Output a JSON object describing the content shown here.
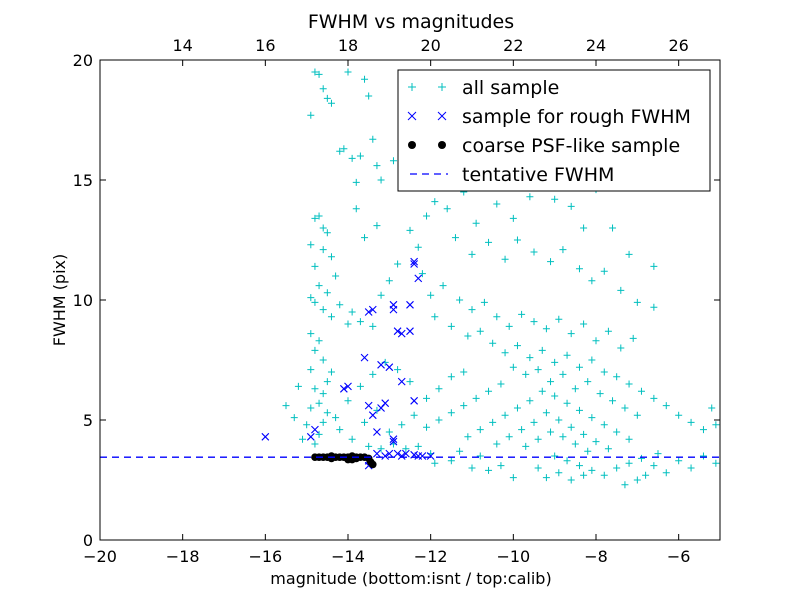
{
  "chart_data": {
    "type": "scatter",
    "title": "FWHM vs magnitudes",
    "xlabel": "magnitude (bottom:isnt / top:calib)",
    "ylabel": "FWHM (pix)",
    "xlim": [
      -20,
      -5
    ],
    "ylim": [
      0,
      20
    ],
    "x_ticks": [
      -20,
      -18,
      -16,
      -14,
      -12,
      -10,
      -8,
      -6
    ],
    "y_ticks": [
      0,
      5,
      10,
      15,
      20
    ],
    "x_tick_labels": [
      "−20",
      "−18",
      "−16",
      "−14",
      "−12",
      "−10",
      "−8",
      "−6"
    ],
    "y_tick_labels": [
      "0",
      "5",
      "10",
      "15",
      "20"
    ],
    "top_axis": {
      "offset": 32.0,
      "ticks": [
        14,
        16,
        18,
        20,
        22,
        24,
        26
      ],
      "tick_labels": [
        "14",
        "16",
        "18",
        "20",
        "22",
        "24",
        "26"
      ]
    },
    "grid": false,
    "legend_position": "top-right",
    "series": [
      {
        "name": "all sample",
        "marker": "+",
        "color": "#00bfbf",
        "points": [
          [
            -14.8,
            19.5
          ],
          [
            -14.7,
            19.4
          ],
          [
            -14.6,
            18.8
          ],
          [
            -14.5,
            18.4
          ],
          [
            -14.4,
            18.2
          ],
          [
            -14.9,
            17.7
          ],
          [
            -14.0,
            19.5
          ],
          [
            -13.6,
            19.2
          ],
          [
            -13.5,
            18.5
          ],
          [
            -14.1,
            16.3
          ],
          [
            -14.2,
            16.2
          ],
          [
            -13.9,
            15.9
          ],
          [
            -13.7,
            16.0
          ],
          [
            -13.4,
            16.7
          ],
          [
            -13.3,
            15.6
          ],
          [
            -12.9,
            15.8
          ],
          [
            -13.2,
            15.0
          ],
          [
            -13.8,
            14.9
          ],
          [
            -12.6,
            15.1
          ],
          [
            -12.3,
            14.7
          ],
          [
            -14.8,
            13.4
          ],
          [
            -14.7,
            13.5
          ],
          [
            -14.6,
            13.0
          ],
          [
            -14.5,
            12.8
          ],
          [
            -14.9,
            12.3
          ],
          [
            -14.6,
            12.1
          ],
          [
            -14.4,
            11.8
          ],
          [
            -14.8,
            11.4
          ],
          [
            -14.3,
            11.0
          ],
          [
            -14.7,
            10.6
          ],
          [
            -14.5,
            10.3
          ],
          [
            -14.9,
            10.1
          ],
          [
            -14.8,
            9.9
          ],
          [
            -14.6,
            9.6
          ],
          [
            -14.4,
            9.3
          ],
          [
            -14.2,
            9.8
          ],
          [
            -13.9,
            9.5
          ],
          [
            -14.0,
            9.0
          ],
          [
            -13.7,
            9.1
          ],
          [
            -13.4,
            8.9
          ],
          [
            -13.2,
            10.2
          ],
          [
            -13.0,
            10.8
          ],
          [
            -12.8,
            11.5
          ],
          [
            -12.5,
            12.9
          ],
          [
            -12.3,
            12.2
          ],
          [
            -13.6,
            12.6
          ],
          [
            -13.3,
            13.1
          ],
          [
            -13.8,
            13.8
          ],
          [
            -12.1,
            13.5
          ],
          [
            -11.9,
            14.1
          ],
          [
            -11.6,
            13.8
          ],
          [
            -11.2,
            14.5
          ],
          [
            -10.9,
            13.2
          ],
          [
            -10.4,
            14.0
          ],
          [
            -10.0,
            13.4
          ],
          [
            -9.6,
            14.3
          ],
          [
            -9.2,
            15.0
          ],
          [
            -9.0,
            14.2
          ],
          [
            -8.6,
            13.9
          ],
          [
            -8.3,
            13.0
          ],
          [
            -8.0,
            14.6
          ],
          [
            -7.6,
            13.0
          ],
          [
            -7.2,
            11.9
          ],
          [
            -6.6,
            11.4
          ],
          [
            -9.8,
            16.5
          ],
          [
            -10.8,
            15.4
          ],
          [
            -11.4,
            12.6
          ],
          [
            -11.0,
            11.9
          ],
          [
            -10.6,
            12.4
          ],
          [
            -10.2,
            11.7
          ],
          [
            -9.9,
            12.5
          ],
          [
            -9.5,
            12.0
          ],
          [
            -9.1,
            11.6
          ],
          [
            -8.8,
            12.1
          ],
          [
            -8.4,
            11.3
          ],
          [
            -8.1,
            10.8
          ],
          [
            -7.8,
            11.2
          ],
          [
            -7.4,
            10.4
          ],
          [
            -7.0,
            9.9
          ],
          [
            -6.6,
            9.7
          ],
          [
            -12.2,
            11.1
          ],
          [
            -12.0,
            10.2
          ],
          [
            -11.7,
            10.6
          ],
          [
            -11.3,
            10.0
          ],
          [
            -11.0,
            9.6
          ],
          [
            -10.7,
            9.9
          ],
          [
            -10.4,
            9.3
          ],
          [
            -10.1,
            8.9
          ],
          [
            -9.8,
            9.4
          ],
          [
            -9.5,
            9.1
          ],
          [
            -9.2,
            8.8
          ],
          [
            -8.9,
            9.2
          ],
          [
            -8.6,
            8.6
          ],
          [
            -8.3,
            9.0
          ],
          [
            -8.0,
            8.3
          ],
          [
            -7.7,
            8.7
          ],
          [
            -7.4,
            8.0
          ],
          [
            -7.1,
            8.4
          ],
          [
            -11.9,
            9.3
          ],
          [
            -11.5,
            8.9
          ],
          [
            -11.1,
            8.5
          ],
          [
            -10.8,
            8.7
          ],
          [
            -10.5,
            8.2
          ],
          [
            -10.2,
            7.8
          ],
          [
            -9.9,
            8.1
          ],
          [
            -9.6,
            7.6
          ],
          [
            -9.3,
            7.9
          ],
          [
            -9.0,
            7.4
          ],
          [
            -8.7,
            7.7
          ],
          [
            -8.4,
            7.2
          ],
          [
            -8.1,
            7.5
          ],
          [
            -7.8,
            7.0
          ],
          [
            -7.5,
            6.8
          ],
          [
            -7.2,
            6.5
          ],
          [
            -6.9,
            6.2
          ],
          [
            -6.6,
            5.9
          ],
          [
            -6.3,
            5.6
          ],
          [
            -6.0,
            5.2
          ],
          [
            -5.7,
            4.9
          ],
          [
            -5.4,
            4.6
          ],
          [
            -5.2,
            5.5
          ],
          [
            -5.1,
            4.8
          ],
          [
            -10.0,
            7.2
          ],
          [
            -9.7,
            6.9
          ],
          [
            -9.4,
            7.1
          ],
          [
            -9.1,
            6.6
          ],
          [
            -8.8,
            6.9
          ],
          [
            -8.5,
            6.3
          ],
          [
            -8.2,
            6.6
          ],
          [
            -7.9,
            6.1
          ],
          [
            -7.6,
            5.8
          ],
          [
            -7.3,
            5.5
          ],
          [
            -7.0,
            5.2
          ],
          [
            -10.3,
            6.5
          ],
          [
            -10.6,
            6.2
          ],
          [
            -10.9,
            5.9
          ],
          [
            -11.2,
            5.6
          ],
          [
            -11.5,
            5.3
          ],
          [
            -11.8,
            5.0
          ],
          [
            -12.1,
            4.7
          ],
          [
            -9.3,
            6.2
          ],
          [
            -9.0,
            6.0
          ],
          [
            -8.7,
            5.7
          ],
          [
            -8.4,
            5.4
          ],
          [
            -8.1,
            5.1
          ],
          [
            -7.8,
            4.8
          ],
          [
            -7.5,
            4.5
          ],
          [
            -7.2,
            4.2
          ],
          [
            -9.6,
            5.8
          ],
          [
            -9.9,
            5.5
          ],
          [
            -10.2,
            5.2
          ],
          [
            -10.5,
            4.9
          ],
          [
            -10.8,
            4.6
          ],
          [
            -11.1,
            4.3
          ],
          [
            -9.2,
            5.3
          ],
          [
            -8.9,
            5.0
          ],
          [
            -8.6,
            4.7
          ],
          [
            -8.3,
            4.4
          ],
          [
            -8.0,
            4.1
          ],
          [
            -7.7,
            3.8
          ],
          [
            -9.5,
            4.9
          ],
          [
            -9.8,
            4.6
          ],
          [
            -10.1,
            4.3
          ],
          [
            -10.4,
            4.0
          ],
          [
            -8.8,
            4.3
          ],
          [
            -8.5,
            4.0
          ],
          [
            -8.2,
            3.7
          ],
          [
            -9.1,
            4.5
          ],
          [
            -9.4,
            4.2
          ],
          [
            -9.7,
            3.9
          ],
          [
            -9.0,
            3.5
          ],
          [
            -8.7,
            3.3
          ],
          [
            -8.4,
            3.1
          ],
          [
            -8.1,
            2.9
          ],
          [
            -7.8,
            2.7
          ],
          [
            -7.5,
            3.0
          ],
          [
            -7.2,
            3.2
          ],
          [
            -6.9,
            3.4
          ],
          [
            -6.6,
            3.1
          ],
          [
            -6.3,
            2.8
          ],
          [
            -6.0,
            3.3
          ],
          [
            -5.7,
            3.0
          ],
          [
            -5.4,
            3.5
          ],
          [
            -5.1,
            3.2
          ],
          [
            -7.0,
            2.5
          ],
          [
            -7.3,
            2.3
          ],
          [
            -6.8,
            2.7
          ],
          [
            -6.5,
            3.6
          ],
          [
            -10.6,
            2.9
          ],
          [
            -10.3,
            3.1
          ],
          [
            -11.0,
            3.0
          ],
          [
            -11.5,
            3.3
          ],
          [
            -11.9,
            3.2
          ],
          [
            -9.2,
            2.6
          ],
          [
            -8.9,
            2.8
          ],
          [
            -8.6,
            2.5
          ],
          [
            -8.3,
            2.7
          ],
          [
            -14.8,
            4.0
          ],
          [
            -14.7,
            4.4
          ],
          [
            -14.6,
            4.9
          ],
          [
            -14.5,
            5.3
          ],
          [
            -14.7,
            5.7
          ],
          [
            -14.6,
            6.1
          ],
          [
            -14.5,
            6.6
          ],
          [
            -14.4,
            7.0
          ],
          [
            -14.6,
            7.5
          ],
          [
            -14.8,
            7.9
          ],
          [
            -14.7,
            8.3
          ],
          [
            -14.9,
            8.6
          ],
          [
            -14.8,
            6.3
          ],
          [
            -14.9,
            5.5
          ],
          [
            -15.0,
            4.8
          ],
          [
            -15.1,
            4.2
          ],
          [
            -15.3,
            5.1
          ],
          [
            -15.5,
            5.6
          ],
          [
            -15.2,
            6.4
          ],
          [
            -14.9,
            7.1
          ],
          [
            -14.2,
            4.6
          ],
          [
            -13.9,
            4.2
          ],
          [
            -13.6,
            4.9
          ],
          [
            -13.3,
            5.4
          ],
          [
            -13.0,
            4.5
          ],
          [
            -12.7,
            4.8
          ],
          [
            -12.4,
            5.2
          ],
          [
            -12.1,
            5.9
          ],
          [
            -11.8,
            6.3
          ],
          [
            -11.5,
            6.8
          ],
          [
            -11.2,
            7.0
          ],
          [
            -12.5,
            6.6
          ],
          [
            -12.8,
            7.1
          ],
          [
            -13.1,
            7.4
          ],
          [
            -13.4,
            6.9
          ],
          [
            -13.7,
            6.4
          ],
          [
            -14.0,
            5.8
          ],
          [
            -14.3,
            5.1
          ],
          [
            -13.5,
            3.9
          ],
          [
            -13.2,
            3.8
          ],
          [
            -12.9,
            4.0
          ],
          [
            -12.6,
            3.8
          ],
          [
            -12.3,
            3.9
          ],
          [
            -9.4,
            3.0
          ],
          [
            -10.0,
            2.6
          ],
          [
            -10.8,
            3.5
          ],
          [
            -11.3,
            3.7
          ],
          [
            -12.0,
            3.6
          ]
        ]
      },
      {
        "name": "sample for rough FWHM",
        "marker": "x",
        "color": "#0000ff",
        "points": [
          [
            -16.0,
            4.3
          ],
          [
            -14.9,
            4.3
          ],
          [
            -14.8,
            4.6
          ],
          [
            -14.1,
            6.3
          ],
          [
            -14.0,
            6.4
          ],
          [
            -13.6,
            7.6
          ],
          [
            -13.5,
            5.6
          ],
          [
            -13.4,
            5.2
          ],
          [
            -13.3,
            4.5
          ],
          [
            -13.5,
            9.5
          ],
          [
            -13.4,
            9.6
          ],
          [
            -13.2,
            7.3
          ],
          [
            -13.0,
            7.2
          ],
          [
            -12.9,
            9.6
          ],
          [
            -12.9,
            9.8
          ],
          [
            -12.8,
            8.7
          ],
          [
            -12.7,
            8.6
          ],
          [
            -12.7,
            6.6
          ],
          [
            -12.5,
            8.7
          ],
          [
            -12.5,
            9.8
          ],
          [
            -12.4,
            11.6
          ],
          [
            -12.4,
            11.5
          ],
          [
            -12.3,
            10.9
          ],
          [
            -12.4,
            5.8
          ],
          [
            -13.1,
            5.7
          ],
          [
            -13.2,
            5.5
          ],
          [
            -12.9,
            4.1
          ],
          [
            -12.9,
            4.2
          ],
          [
            -13.3,
            3.6
          ],
          [
            -13.0,
            3.6
          ],
          [
            -12.8,
            3.6
          ],
          [
            -12.6,
            3.6
          ],
          [
            -12.4,
            3.55
          ],
          [
            -12.2,
            3.5
          ],
          [
            -12.0,
            3.5
          ],
          [
            -13.5,
            3.1
          ],
          [
            -13.5,
            3.3
          ],
          [
            -13.1,
            3.5
          ],
          [
            -12.7,
            3.5
          ],
          [
            -12.3,
            3.5
          ]
        ]
      },
      {
        "name": "coarse PSF-like sample",
        "marker": "o",
        "color": "#000000",
        "points": [
          [
            -14.8,
            3.45
          ],
          [
            -14.7,
            3.45
          ],
          [
            -14.6,
            3.45
          ],
          [
            -14.5,
            3.45
          ],
          [
            -14.4,
            3.5
          ],
          [
            -14.3,
            3.45
          ],
          [
            -14.2,
            3.45
          ],
          [
            -14.1,
            3.45
          ],
          [
            -14.0,
            3.45
          ],
          [
            -13.9,
            3.5
          ],
          [
            -13.8,
            3.45
          ],
          [
            -13.7,
            3.45
          ],
          [
            -13.6,
            3.45
          ],
          [
            -13.5,
            3.4
          ],
          [
            -13.45,
            3.25
          ],
          [
            -13.4,
            3.15
          ],
          [
            -13.9,
            3.35
          ],
          [
            -14.0,
            3.35
          ],
          [
            -13.8,
            3.4
          ],
          [
            -14.4,
            3.4
          ]
        ]
      },
      {
        "name": "tentative FWHM",
        "line": "dashed",
        "color": "#0000ff",
        "y": 3.45
      }
    ]
  }
}
